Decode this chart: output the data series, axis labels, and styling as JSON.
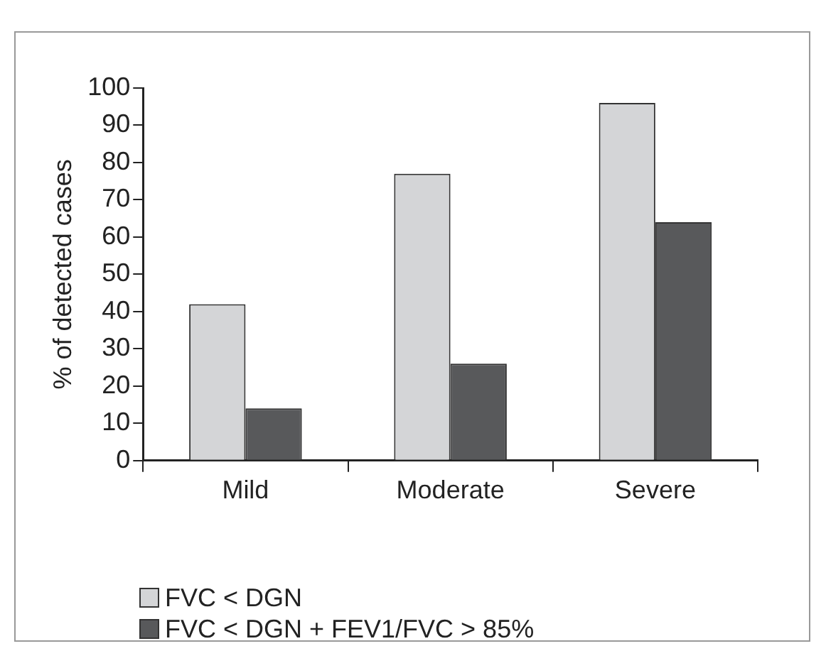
{
  "chart_data": {
    "type": "bar",
    "ylabel": "% of detected cases",
    "categories": [
      "Mild",
      "Moderate",
      "Severe"
    ],
    "series": [
      {
        "name": "FVC < DGN",
        "color": "#d4d5d7",
        "values": [
          42,
          77,
          96
        ]
      },
      {
        "name": "FVC < DGN + FEV1/FVC > 85%",
        "color": "#58595b",
        "values": [
          14,
          26,
          64
        ]
      }
    ],
    "ylim": [
      0,
      100
    ],
    "yticks": [
      0,
      10,
      20,
      30,
      40,
      50,
      60,
      70,
      80,
      90,
      100
    ],
    "grid": false,
    "legend": "bottom left"
  }
}
